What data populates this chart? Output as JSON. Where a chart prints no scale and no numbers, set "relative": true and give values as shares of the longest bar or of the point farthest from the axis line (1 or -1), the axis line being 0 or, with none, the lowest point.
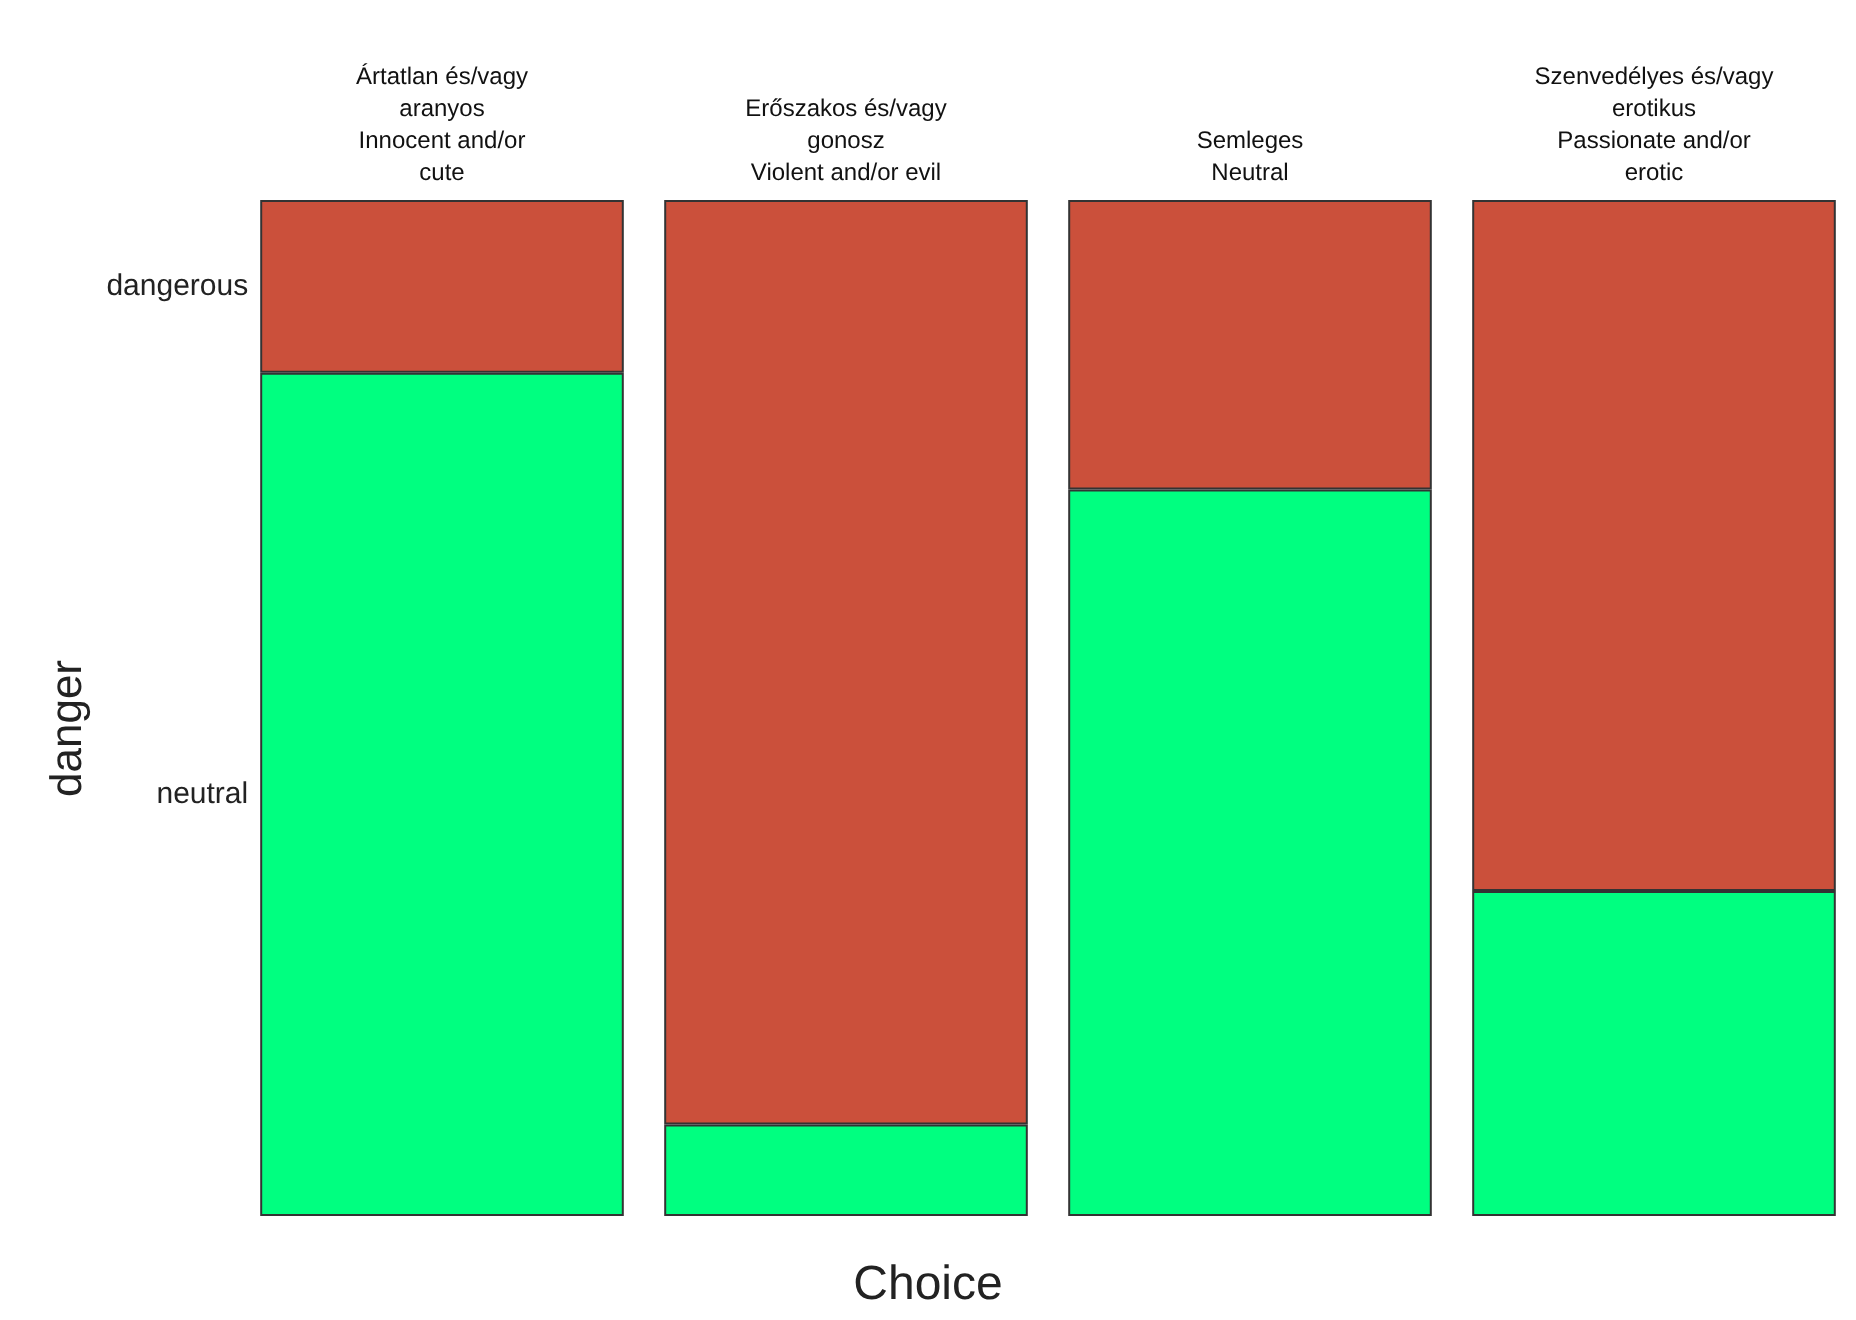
{
  "chart_data": {
    "type": "bar",
    "stacked": true,
    "relative": true,
    "xlabel": "Choice",
    "ylabel": "danger",
    "categories": [
      "Ártatlan és/vagy\naranyos\nInnocent and/or\ncute",
      "Erőszakos és/vagy\ngonosz\nViolent and/or evil",
      "Semleges\nNeutral",
      "Szenvedélyes és/vagy\nerotikus\nPassionate and/or\nerotic"
    ],
    "series": [
      {
        "name": "neutral",
        "color": "#00ff80",
        "values": [
          0.83,
          0.09,
          0.715,
          0.32
        ]
      },
      {
        "name": "dangerous",
        "color": "#cb503b",
        "values": [
          0.17,
          0.91,
          0.285,
          0.68
        ]
      }
    ],
    "legend": false,
    "grid": false
  }
}
